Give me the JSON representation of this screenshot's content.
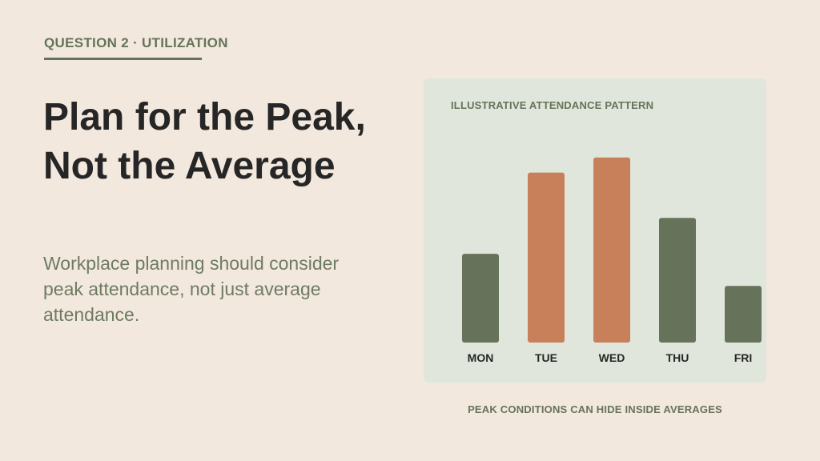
{
  "eyebrow": "QUESTION 2 · UTILIZATION",
  "title": "Plan for the Peak, Not the Average",
  "subtitle": "Workplace planning should consider peak attendance, not just average attendance.",
  "panel_label": "ILLUSTRATIVE ATTENDANCE PATTERN",
  "caption": "PEAK CONDITIONS CAN HIDE INSIDE AVERAGES",
  "colors": {
    "background": "#f2e8dd",
    "panel": "#e0e6dc",
    "green": "#66735a",
    "orange": "#c8805a",
    "text_dark": "#262626"
  },
  "chart_data": {
    "type": "bar",
    "title": "ILLUSTRATIVE ATTENDANCE PATTERN",
    "categories": [
      "MON",
      "TUE",
      "WED",
      "THU",
      "FRI"
    ],
    "values": [
      47,
      90,
      98,
      66,
      30
    ],
    "highlight": [
      false,
      true,
      true,
      false,
      false
    ],
    "ylim": [
      0,
      100
    ],
    "grid": false,
    "legend": "none"
  }
}
